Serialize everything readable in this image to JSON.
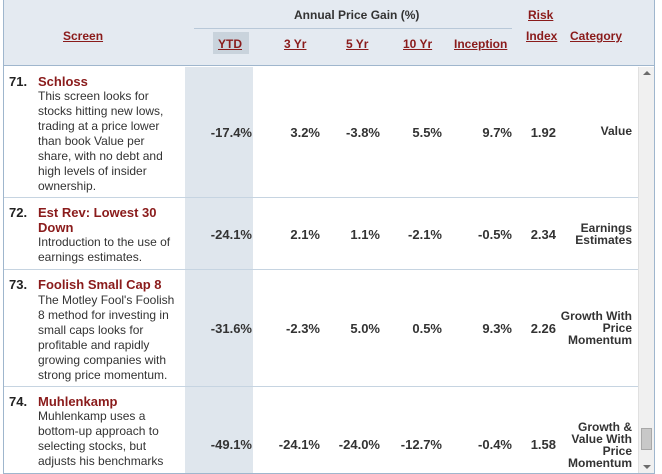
{
  "header": {
    "screen": "Screen",
    "group": "Annual Price Gain (%)",
    "ytd": "YTD",
    "yr3": "3 Yr",
    "yr5": "5 Yr",
    "yr10": "10 Yr",
    "inception": "Inception",
    "risk1": "Risk",
    "risk2": "Index",
    "category": "Category"
  },
  "rows": [
    {
      "num": "71.",
      "title": "Schloss",
      "desc": [
        "This screen looks for",
        "stocks hitting new lows,",
        "trading at a price lower",
        "than book Value per",
        "share, with no debt and",
        "high levels of insider",
        "ownership."
      ],
      "ytd": "-17.4%",
      "yr3": "3.2%",
      "yr5": "-3.8%",
      "yr10": "5.5%",
      "inception": "9.7%",
      "risk": "1.92",
      "category": [
        "Value"
      ]
    },
    {
      "num": "72.",
      "title": [
        "Est Rev: Lowest 30",
        "Down"
      ],
      "desc": [
        "Introduction to the use of",
        "earnings estimates."
      ],
      "ytd": "-24.1%",
      "yr3": "2.1%",
      "yr5": "1.1%",
      "yr10": "-2.1%",
      "inception": "-0.5%",
      "risk": "2.34",
      "category": [
        "Earnings",
        "Estimates"
      ]
    },
    {
      "num": "73.",
      "title": "Foolish Small Cap 8",
      "desc": [
        "The Motley Fool's Foolish",
        "8 method for investing in",
        "small caps looks for",
        "profitable and rapidly",
        "growing companies with",
        "strong price momentum."
      ],
      "ytd": "-31.6%",
      "yr3": "-2.3%",
      "yr5": "5.0%",
      "yr10": "0.5%",
      "inception": "9.3%",
      "risk": "2.26",
      "category": [
        "Growth With",
        "Price",
        "Momentum"
      ]
    },
    {
      "num": "74.",
      "title": "Muhlenkamp",
      "desc": [
        "Muhlenkamp uses a",
        "bottom-up approach to",
        "selecting stocks, but",
        "adjusts his benchmarks"
      ],
      "ytd": "-49.1%",
      "yr3": "-24.1%",
      "yr5": "-24.0%",
      "yr10": "-12.7%",
      "inception": "-0.4%",
      "risk": "1.58",
      "category": [
        "Growth &",
        "Value With",
        "Price",
        "Momentum"
      ]
    }
  ]
}
